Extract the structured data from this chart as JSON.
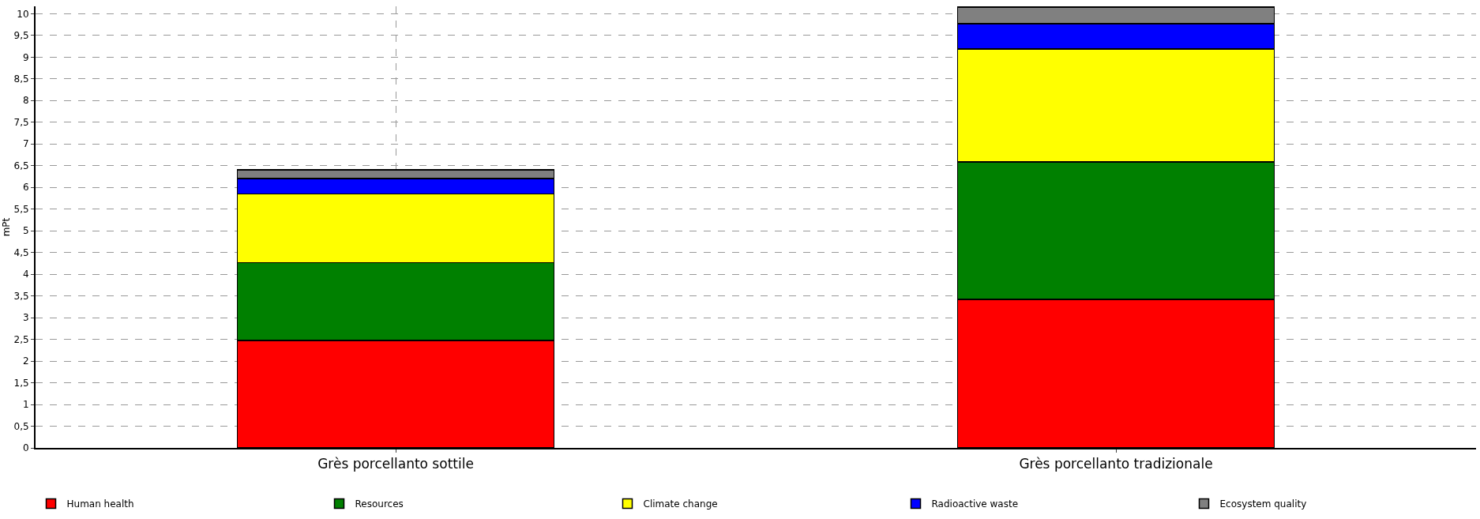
{
  "chart_data": {
    "type": "bar",
    "stacked": true,
    "ylabel": "mPt",
    "categories": [
      "Grès porcellanto sottile",
      "Grès porcellanto tradizionale"
    ],
    "series": [
      {
        "name": "Human health",
        "color": "#ff0000",
        "values": [
          2.47,
          3.42
        ]
      },
      {
        "name": "Resources",
        "color": "#008000",
        "values": [
          1.8,
          3.17
        ]
      },
      {
        "name": "Climate change",
        "color": "#ffff00",
        "values": [
          1.58,
          2.6
        ]
      },
      {
        "name": "Radioactive waste",
        "color": "#0000ff",
        "values": [
          0.35,
          0.58
        ]
      },
      {
        "name": "Ecosystem quality",
        "color": "#808080",
        "values": [
          0.2,
          0.38
        ]
      }
    ],
    "ylim": [
      0,
      10.17
    ],
    "yticks": [
      0,
      {
        "value": 0.5,
        "label": "0,5"
      },
      1,
      {
        "value": 1.5,
        "label": "1,5"
      },
      2,
      {
        "value": 2.5,
        "label": "2,5"
      },
      3,
      {
        "value": 3.5,
        "label": "3,5"
      },
      4,
      {
        "value": 4.5,
        "label": "4,5"
      },
      5,
      {
        "value": 5.5,
        "label": "5,5"
      },
      6,
      {
        "value": 6.5,
        "label": "6,5"
      },
      7,
      {
        "value": 7.5,
        "label": "7,5"
      },
      8,
      {
        "value": 8.5,
        "label": "8,5"
      },
      9,
      {
        "value": 9.5,
        "label": "9,5"
      },
      10
    ],
    "grid": true,
    "legend": "bottom"
  }
}
